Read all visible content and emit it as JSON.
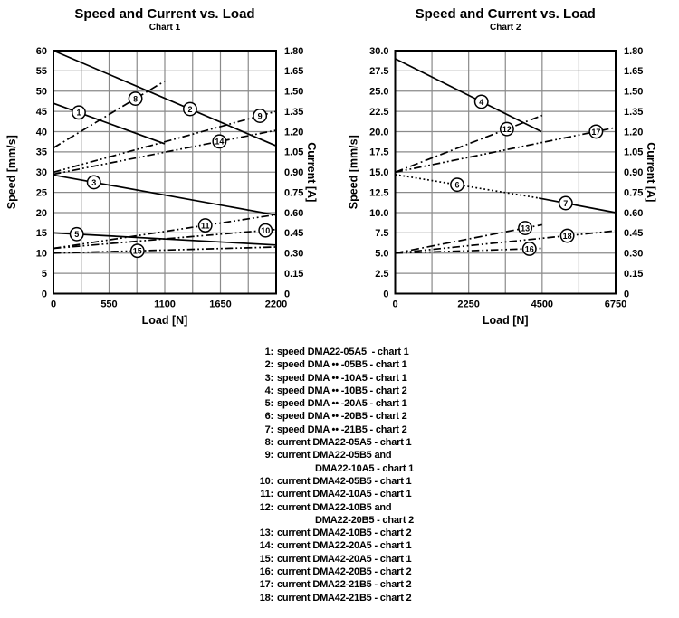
{
  "page_title": "Speed and Current vs. Load",
  "colors": {
    "background": "#ffffff",
    "line": "#000000",
    "grid": "#8a8a8a",
    "plot_border": "#000000"
  },
  "chart_data": [
    {
      "type": "line",
      "title": "Speed and Current vs. Load",
      "subtitle": "Chart 1",
      "xlabel": "Load [N]",
      "ylabel_left": "Speed [mm/s]",
      "ylabel_right": "Current [A]",
      "xlim": [
        0,
        2200
      ],
      "x_tick_labels": [
        "0",
        "550",
        "1100",
        "1650",
        "2200"
      ],
      "x_minor_step": 275,
      "ylim_left": [
        0,
        60
      ],
      "y_left_step": 5,
      "y_left_tick_labels": [
        "60",
        "55",
        "50",
        "45",
        "40",
        "35",
        "30",
        "25",
        "20",
        "15",
        "10",
        "5",
        "0"
      ],
      "ylim_right": [
        0,
        1.8
      ],
      "y_right_tick_labels": [
        "1.80",
        "1.65",
        "1.50",
        "1.35",
        "1.20",
        "1.05",
        "0.90",
        "0.75",
        "0.60",
        "0.45",
        "0.30",
        "0.15",
        "0"
      ],
      "grid": true,
      "series": [
        {
          "id": "1",
          "name": "speed DMA22-05A5 - chart 1",
          "axis": "left",
          "style": "solid",
          "points": [
            [
              0,
              47
            ],
            [
              1100,
              37
            ]
          ],
          "label_x": 250
        },
        {
          "id": "2",
          "name": "speed DMA •• -05B5 - chart 1",
          "axis": "left",
          "style": "solid",
          "points": [
            [
              0,
              60
            ],
            [
              2200,
              36.5
            ]
          ],
          "label_x": 1350
        },
        {
          "id": "3",
          "name": "speed DMA •• -10A5 - chart 1",
          "axis": "left",
          "style": "solid",
          "points": [
            [
              0,
              29.3
            ],
            [
              2200,
              19.4
            ]
          ],
          "label_x": 400
        },
        {
          "id": "5",
          "name": "speed DMA •• -20A5 - chart 1",
          "axis": "left",
          "style": "solid",
          "points": [
            [
              0,
              15
            ],
            [
              2200,
              12
            ]
          ],
          "label_x": 230
        },
        {
          "id": "8",
          "name": "current DMA22-05A5 - chart 1",
          "axis": "right",
          "style": "dashdot",
          "points": [
            [
              0,
              1.08
            ],
            [
              1100,
              1.575
            ]
          ],
          "label_x": 810
        },
        {
          "id": "9",
          "name": "current DMA22-05B5 and DMA22-10A5 - chart 1",
          "axis": "right",
          "style": "dashdotdot",
          "points": [
            [
              0,
              0.9
            ],
            [
              2200,
              1.35
            ]
          ],
          "label_x": 2040
        },
        {
          "id": "10",
          "name": "current DMA42-05B5 - chart 1",
          "axis": "right",
          "style": "dashdotdot",
          "points": [
            [
              0,
              0.335
            ],
            [
              2200,
              0.475
            ]
          ],
          "label_x": 2095
        },
        {
          "id": "11",
          "name": "current DMA42-10A5 - chart 1",
          "axis": "right",
          "style": "dashdotdot",
          "points": [
            [
              0,
              0.335
            ],
            [
              2200,
              0.585
            ]
          ],
          "label_x": 1500
        },
        {
          "id": "14",
          "name": "current DMA22-20A5 - chart 1",
          "axis": "right",
          "style": "dashdotdot",
          "points": [
            [
              0,
              0.885
            ],
            [
              2200,
              1.21
            ]
          ],
          "label_x": 1640
        },
        {
          "id": "15",
          "name": "current DMA42-20A5 - chart 1",
          "axis": "right",
          "style": "dashdotdot",
          "points": [
            [
              0,
              0.3
            ],
            [
              2200,
              0.345
            ]
          ],
          "label_x": 830
        }
      ]
    },
    {
      "type": "line",
      "title": "Speed and Current vs. Load",
      "subtitle": "Chart 2",
      "xlabel": "Load [N]",
      "ylabel_left": "Speed [mm/s]",
      "ylabel_right": "Current [A]",
      "xlim": [
        0,
        6750
      ],
      "x_tick_labels": [
        "0",
        "2250",
        "4500",
        "6750"
      ],
      "x_minor_step": 1125,
      "ylim_left": [
        0,
        30
      ],
      "y_left_step": 2.5,
      "y_left_tick_labels": [
        "30.0",
        "27.5",
        "25.0",
        "22.5",
        "20.0",
        "17.5",
        "15.0",
        "12.5",
        "10.0",
        "7.5",
        "5.0",
        "2.5",
        "0"
      ],
      "ylim_right": [
        0,
        1.8
      ],
      "y_right_tick_labels": [
        "1.80",
        "1.65",
        "1.50",
        "1.35",
        "1.20",
        "1.05",
        "0.90",
        "0.75",
        "0.60",
        "0.45",
        "0.30",
        "0.15",
        "0"
      ],
      "grid": true,
      "series": [
        {
          "id": "4",
          "name": "speed DMA •• -10B5 - chart 2",
          "axis": "left",
          "style": "solid",
          "points": [
            [
              0,
              29
            ],
            [
              4480,
              20
            ]
          ],
          "label_x": 2640
        },
        {
          "id": "6",
          "name": "speed DMA •• -20B5 - chart 2",
          "axis": "left",
          "style": "dotted",
          "points": [
            [
              0,
              14.7
            ],
            [
              4400,
              11.8
            ]
          ],
          "label_x": 1900
        },
        {
          "id": "7",
          "name": "speed DMA •• -21B5 - chart 2",
          "axis": "left",
          "style": "solid",
          "points": [
            [
              4400,
              11.8
            ],
            [
              6750,
              10
            ]
          ],
          "label_x": 5220
        },
        {
          "id": "12",
          "name": "current DMA22-10B5 and DMA22-20B5 - chart 2",
          "axis": "right",
          "style": "dashdot",
          "points": [
            [
              0,
              0.9
            ],
            [
              4500,
              1.32
            ]
          ],
          "label_x": 3420
        },
        {
          "id": "13",
          "name": "current DMA42-10B5 - chart 2",
          "axis": "right",
          "style": "dashdot",
          "points": [
            [
              0,
              0.3
            ],
            [
              4500,
              0.51
            ]
          ],
          "label_x": 3980
        },
        {
          "id": "16",
          "name": "current DMA42-20B5 - chart 2",
          "axis": "right",
          "style": "dashdotdot",
          "points": [
            [
              0,
              0.3
            ],
            [
              4500,
              0.335
            ]
          ],
          "label_x": 4110
        },
        {
          "id": "17",
          "name": "current DMA22-21B5 - chart 2",
          "axis": "right",
          "style": "dashdotdot",
          "points": [
            [
              0,
              0.9
            ],
            [
              6750,
              1.23
            ]
          ],
          "label_x": 6150
        },
        {
          "id": "18",
          "name": "current DMA42-21B5 - chart 2",
          "axis": "right",
          "style": "dashdotdot",
          "points": [
            [
              0,
              0.3
            ],
            [
              6750,
              0.465
            ]
          ],
          "label_x": 5270
        }
      ]
    }
  ],
  "legend": {
    "rows": [
      {
        "n": "1:",
        "t": "speed DMA22-05A5  - chart 1"
      },
      {
        "n": "2:",
        "t": "speed DMA •• -05B5 - chart 1"
      },
      {
        "n": "3:",
        "t": "speed DMA •• -10A5 - chart 1"
      },
      {
        "n": "4:",
        "t": "speed DMA •• -10B5 - chart 2"
      },
      {
        "n": "5:",
        "t": "speed DMA •• -20A5 - chart 1"
      },
      {
        "n": "6:",
        "t": "speed DMA •• -20B5 - chart 2"
      },
      {
        "n": "7:",
        "t": "speed DMA •• -21B5 - chart 2"
      },
      {
        "n": "8:",
        "t": "current DMA22-05A5 - chart 1"
      },
      {
        "n": "9:",
        "t": "current DMA22-05B5 and"
      },
      {
        "n": "",
        "t": "DMA22-10A5 - chart 1",
        "cont": true
      },
      {
        "n": "10:",
        "t": "current DMA42-05B5 - chart 1"
      },
      {
        "n": "11:",
        "t": "current DMA42-10A5 - chart 1"
      },
      {
        "n": "12:",
        "t": "current DMA22-10B5 and"
      },
      {
        "n": "",
        "t": "DMA22-20B5 - chart 2",
        "cont": true
      },
      {
        "n": "13:",
        "t": "current DMA42-10B5 - chart 2"
      },
      {
        "n": "14:",
        "t": "current DMA22-20A5 - chart 1"
      },
      {
        "n": "15:",
        "t": "current DMA42-20A5 - chart 1"
      },
      {
        "n": "16:",
        "t": "current DMA42-20B5 - chart 2"
      },
      {
        "n": "17:",
        "t": "current DMA22-21B5 - chart 2"
      },
      {
        "n": "18:",
        "t": "current DMA42-21B5 - chart 2"
      }
    ]
  }
}
